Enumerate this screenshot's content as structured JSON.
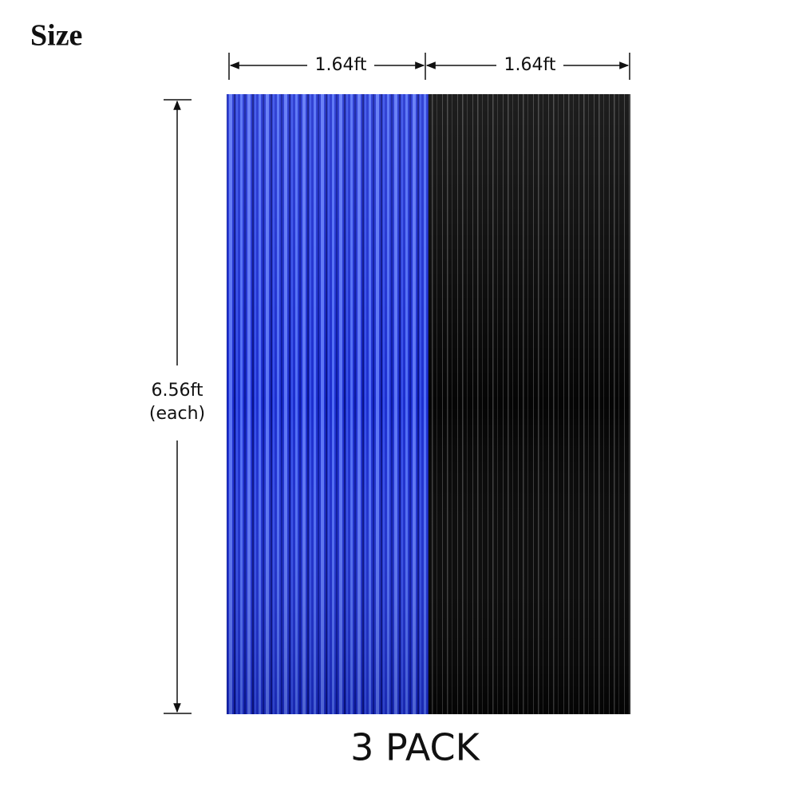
{
  "title": "Size",
  "width_labels": [
    "1.64ft",
    "1.64ft"
  ],
  "height_label": [
    "6.56ft",
    "(each)"
  ],
  "caption": "3 PACK"
}
